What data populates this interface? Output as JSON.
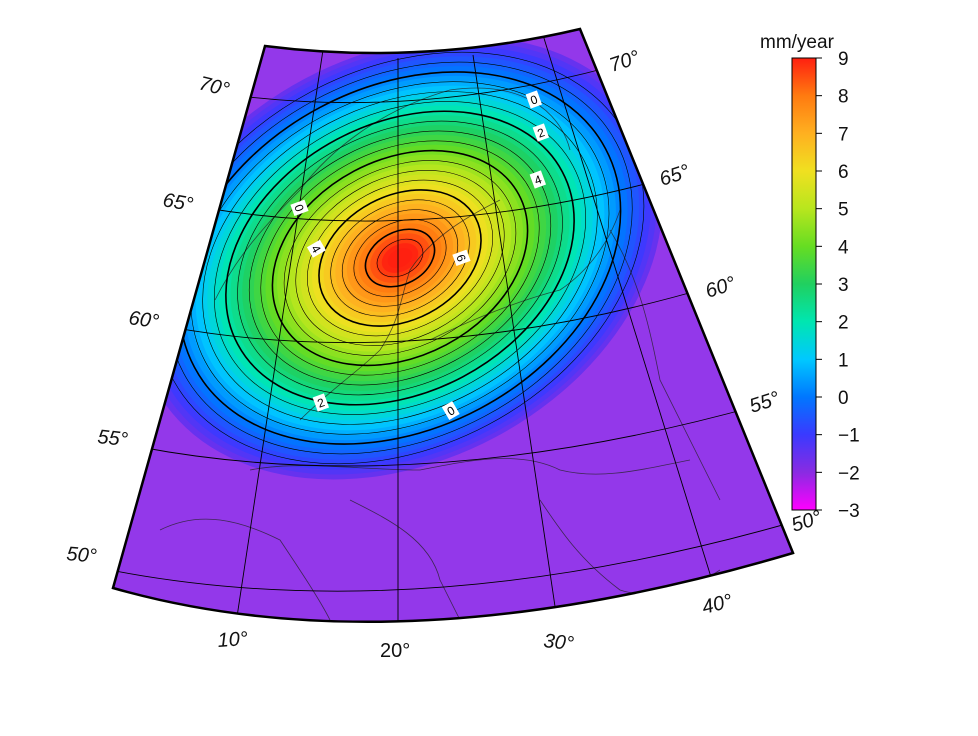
{
  "colorbar": {
    "unit": "mm/year",
    "ticks": [
      "9",
      "8",
      "7",
      "6",
      "5",
      "4",
      "3",
      "2",
      "1",
      "0",
      "−1",
      "−2",
      "−3"
    ],
    "min": -3,
    "max": 9,
    "colors": [
      "#ff00ff",
      "#8a2be2",
      "#3a3aff",
      "#0077ff",
      "#00c8ff",
      "#00e6b0",
      "#20d060",
      "#66dd22",
      "#b8e61e",
      "#f0e020",
      "#ffb020",
      "#ff7a10",
      "#ff2010"
    ]
  },
  "graticule": {
    "latitude_labels_left": [
      "70°",
      "65°",
      "60°",
      "55°",
      "50°"
    ],
    "latitude_labels_right": [
      "70°",
      "65°",
      "60°",
      "55°",
      "50°"
    ],
    "longitude_labels": [
      "10°",
      "20°",
      "30°",
      "40°"
    ]
  },
  "contour_labels": [
    "0",
    "2",
    "4",
    "0",
    "4",
    "6",
    "2",
    "0"
  ],
  "field": {
    "peak_value": 9,
    "background_value": -1.8,
    "colors": {
      "background": "#9338ea"
    }
  }
}
